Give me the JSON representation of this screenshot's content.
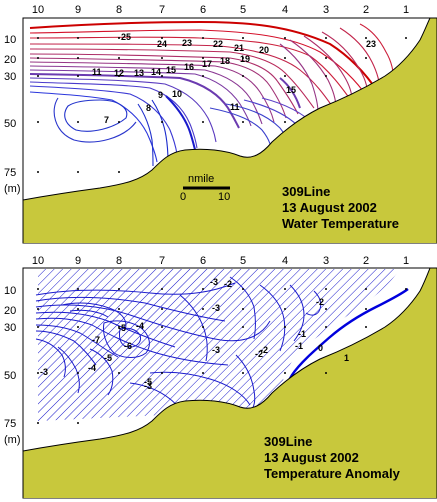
{
  "charts": [
    {
      "id": "temperature",
      "caption": [
        "309Line",
        "13 August 2002",
        "Water Temperature"
      ],
      "scale_label": "nmile",
      "scale_ticks": [
        "0",
        "10"
      ],
      "unit_label": "(m)"
    },
    {
      "id": "anomaly",
      "caption": [
        "309Line",
        "13 August 2002",
        "Temperature Anomaly"
      ],
      "unit_label": "(m)"
    }
  ],
  "chart_data": [
    {
      "type": "contour",
      "x_ticks": [
        "10",
        "9",
        "8",
        "7",
        "6",
        "5",
        "4",
        "3",
        "2",
        "1"
      ],
      "y_ticks": [
        "10",
        "20",
        "30",
        "50",
        "75"
      ],
      "contour_labels": [
        "25",
        "24",
        "23",
        "22",
        "21",
        "20",
        "23",
        "19",
        "18",
        "17",
        "16",
        "15",
        "14",
        "13",
        "12",
        "11",
        "9",
        "10",
        "8",
        "7",
        "11",
        "15"
      ],
      "colors": {
        "warm": "#cc0000",
        "cool": "#1a1acc",
        "mid": "#8a1a99",
        "bottom": "#c8c83c"
      }
    },
    {
      "type": "contour",
      "x_ticks": [
        "10",
        "9",
        "8",
        "7",
        "6",
        "5",
        "4",
        "3",
        "2",
        "1"
      ],
      "y_ticks": [
        "10",
        "20",
        "30",
        "50",
        "75"
      ],
      "contour_labels": [
        "-2",
        "-3",
        "-2",
        "-1",
        "-2",
        "-5",
        "-4",
        "-3",
        "-3",
        "-7",
        "-6",
        "-4",
        "-5",
        "-3",
        "-3",
        "-2",
        "-1",
        "0",
        "1",
        "-5"
      ],
      "colors": {
        "negative": "#1a1acc",
        "zero": "#0000dd",
        "positive": "#cc0000",
        "hatch": "#1a1acc",
        "bottom": "#c8c83c"
      }
    }
  ]
}
